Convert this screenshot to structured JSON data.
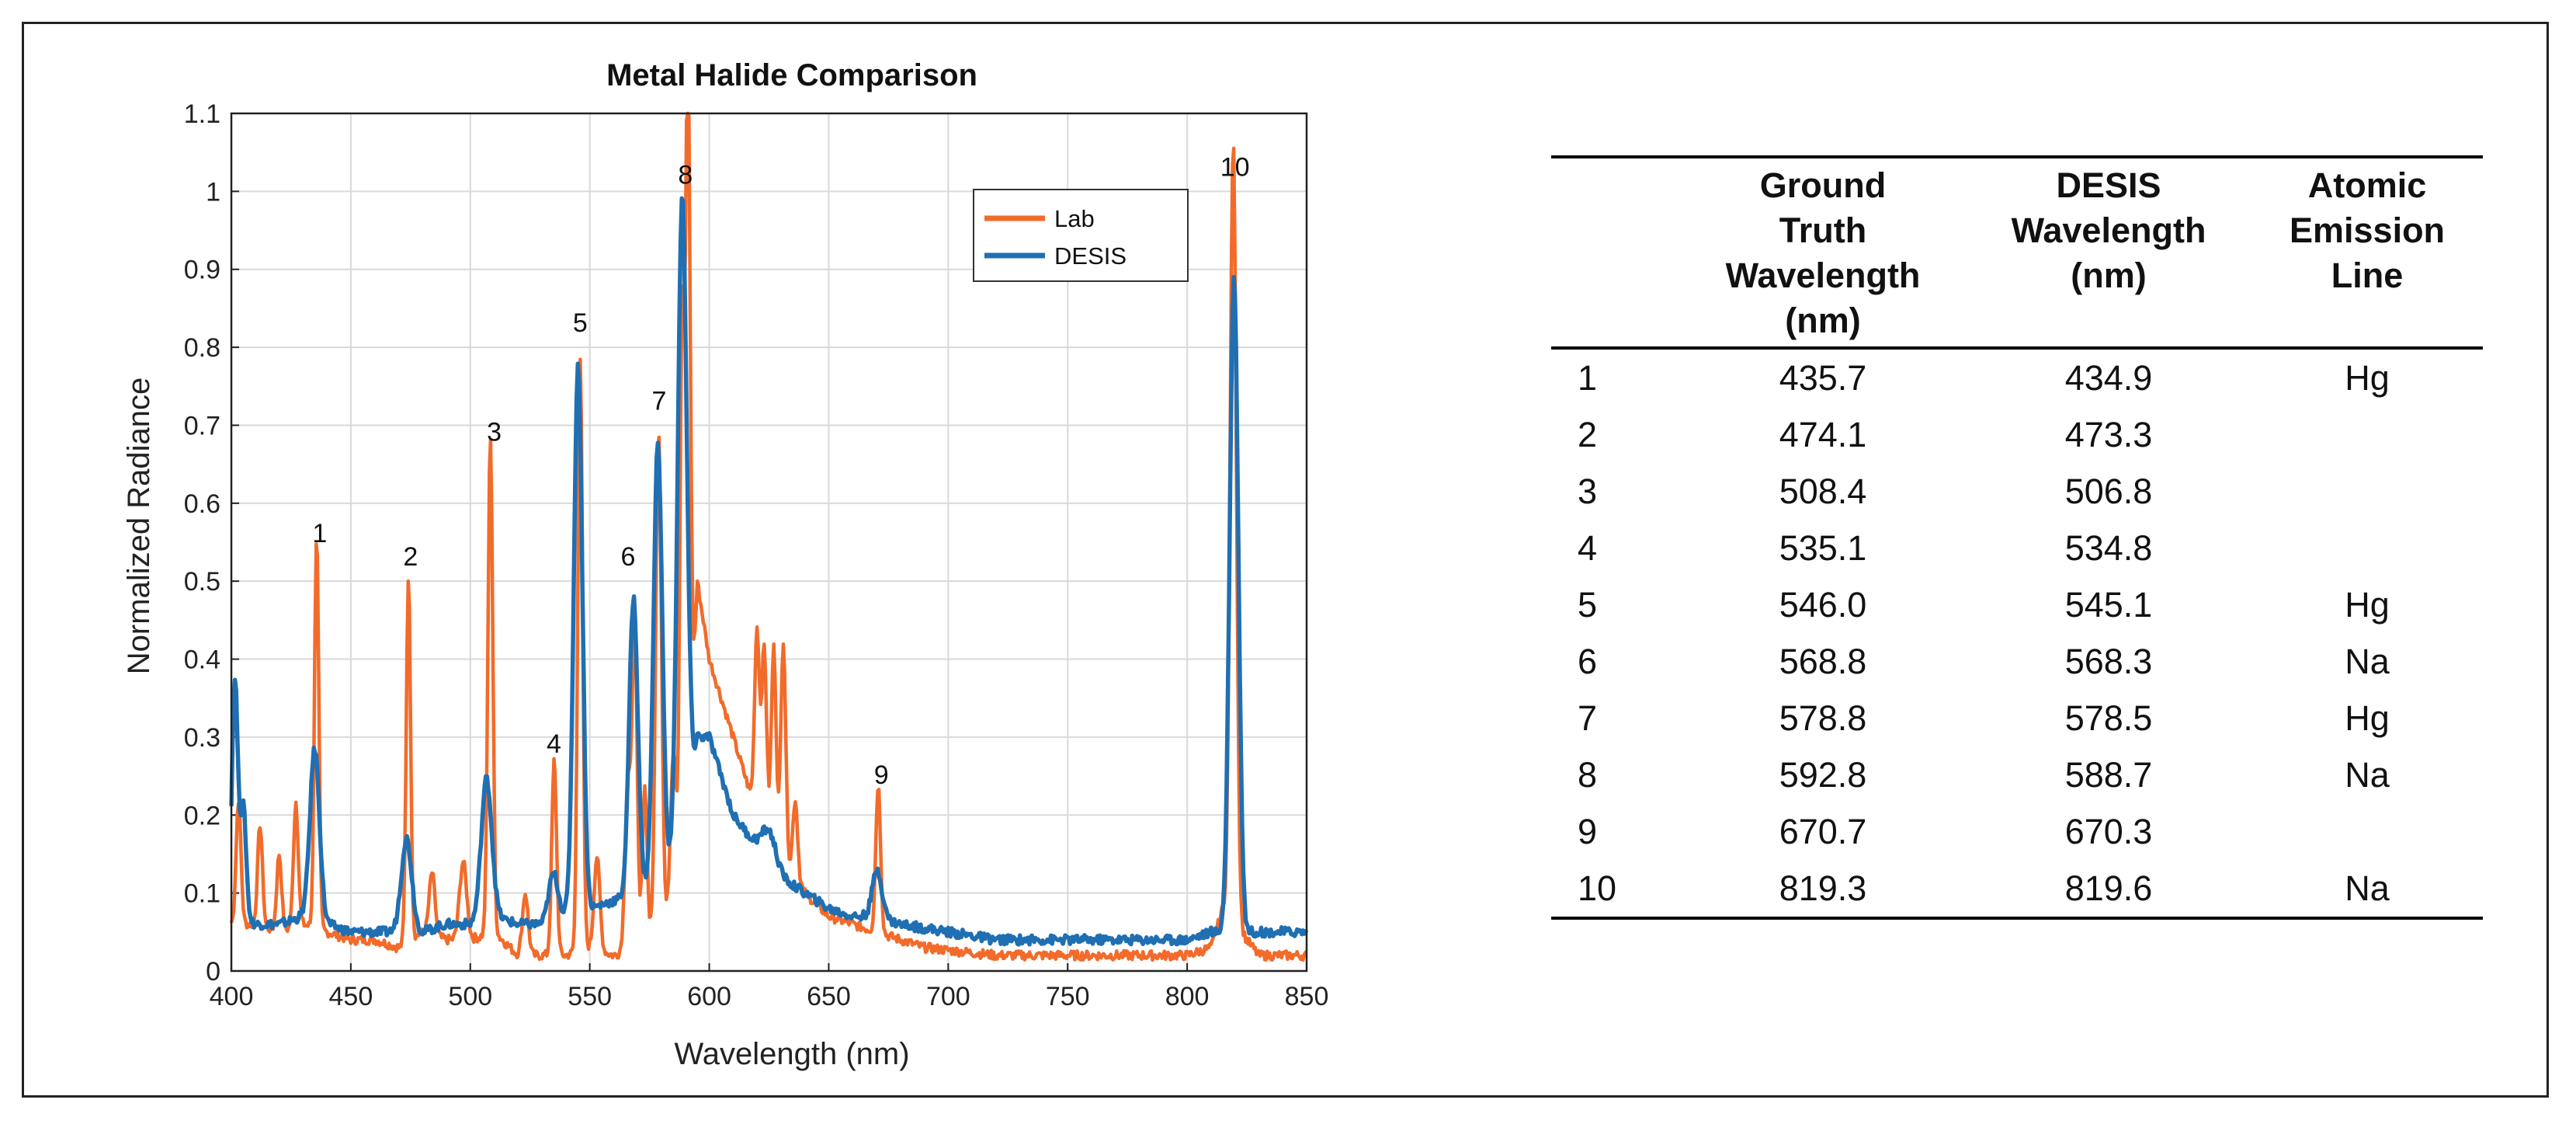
{
  "chart_data": {
    "type": "line",
    "title": "Metal Halide Comparison",
    "xlabel": "Wavelength (nm)",
    "ylabel": "Normalized Radiance",
    "xlim": [
      400,
      850
    ],
    "ylim": [
      0,
      1.1
    ],
    "grid": true,
    "xticks": [
      400,
      450,
      500,
      550,
      600,
      650,
      700,
      750,
      800,
      850
    ],
    "yticks": [
      0,
      0.1,
      0.2,
      0.3,
      0.4,
      0.5,
      0.6,
      0.7,
      0.8,
      0.9,
      1,
      1.1
    ],
    "ytick_labels": [
      "0",
      "0.1",
      "0.2",
      "0.3",
      "0.4",
      "0.5",
      "0.6",
      "0.7",
      "0.8",
      "0.9",
      "1",
      "1.1"
    ],
    "legend_position": "top-right",
    "series": [
      {
        "name": "Lab",
        "color": "#f26b2a",
        "baseline": [
          [
            400,
            0.06
          ],
          [
            410,
            0.06
          ],
          [
            420,
            0.05
          ],
          [
            430,
            0.06
          ],
          [
            440,
            0.05
          ],
          [
            450,
            0.04
          ],
          [
            460,
            0.04
          ],
          [
            470,
            0.03
          ],
          [
            480,
            0.05
          ],
          [
            490,
            0.04
          ],
          [
            500,
            0.04
          ],
          [
            510,
            0.05
          ],
          [
            520,
            0.02
          ],
          [
            530,
            0.02
          ],
          [
            540,
            0.02
          ],
          [
            550,
            0.03
          ],
          [
            560,
            0.02
          ],
          [
            570,
            0.03
          ],
          [
            580,
            0.05
          ],
          [
            590,
            0.12
          ],
          [
            595,
            0.5
          ],
          [
            600,
            0.4
          ],
          [
            610,
            0.3
          ],
          [
            620,
            0.2
          ],
          [
            630,
            0.15
          ],
          [
            640,
            0.1
          ],
          [
            650,
            0.07
          ],
          [
            660,
            0.06
          ],
          [
            670,
            0.05
          ],
          [
            690,
            0.03
          ],
          [
            720,
            0.02
          ],
          [
            760,
            0.02
          ],
          [
            800,
            0.02
          ],
          [
            810,
            0.03
          ],
          [
            815,
            0.08
          ],
          [
            830,
            0.02
          ],
          [
            850,
            0.02
          ]
        ],
        "peaks": [
          {
            "x": 403,
            "y": 0.16,
            "w": 1.0
          },
          {
            "x": 412,
            "y": 0.13,
            "w": 1.0
          },
          {
            "x": 420,
            "y": 0.1,
            "w": 1.0
          },
          {
            "x": 427,
            "y": 0.16,
            "w": 1.0
          },
          {
            "x": 435.7,
            "y": 0.51,
            "w": 0.9
          },
          {
            "x": 474.1,
            "y": 0.47,
            "w": 0.9
          },
          {
            "x": 484,
            "y": 0.08,
            "w": 1.2
          },
          {
            "x": 497,
            "y": 0.1,
            "w": 1.5
          },
          {
            "x": 508.4,
            "y": 0.64,
            "w": 1.0
          },
          {
            "x": 523,
            "y": 0.08,
            "w": 1.2
          },
          {
            "x": 535.1,
            "y": 0.25,
            "w": 1.0
          },
          {
            "x": 546,
            "y": 0.76,
            "w": 1.0
          },
          {
            "x": 553,
            "y": 0.12,
            "w": 1.2
          },
          {
            "x": 566,
            "y": 0.22,
            "w": 1.2
          },
          {
            "x": 568.8,
            "y": 0.42,
            "w": 1.0
          },
          {
            "x": 573,
            "y": 0.2,
            "w": 1.0
          },
          {
            "x": 578.8,
            "y": 0.65,
            "w": 1.2
          },
          {
            "x": 585,
            "y": 0.2,
            "w": 1.2
          },
          {
            "x": 588.6,
            "y": 0.7,
            "w": 0.9
          },
          {
            "x": 591,
            "y": 0.97,
            "w": 1.0
          },
          {
            "x": 620,
            "y": 0.24,
            "w": 1.0
          },
          {
            "x": 623,
            "y": 0.23,
            "w": 1.0
          },
          {
            "x": 627,
            "y": 0.25,
            "w": 1.0
          },
          {
            "x": 631,
            "y": 0.28,
            "w": 1.0
          },
          {
            "x": 636,
            "y": 0.1,
            "w": 1.0
          },
          {
            "x": 670.7,
            "y": 0.19,
            "w": 1.0
          },
          {
            "x": 819.3,
            "y": 1.0,
            "w": 1.3
          }
        ]
      },
      {
        "name": "DESIS",
        "color": "#1f6fb2",
        "baseline": [
          [
            400,
            0.08
          ],
          [
            410,
            0.06
          ],
          [
            420,
            0.06
          ],
          [
            430,
            0.07
          ],
          [
            440,
            0.06
          ],
          [
            450,
            0.05
          ],
          [
            460,
            0.05
          ],
          [
            470,
            0.05
          ],
          [
            480,
            0.05
          ],
          [
            490,
            0.06
          ],
          [
            500,
            0.06
          ],
          [
            510,
            0.07
          ],
          [
            520,
            0.06
          ],
          [
            530,
            0.06
          ],
          [
            540,
            0.07
          ],
          [
            550,
            0.08
          ],
          [
            560,
            0.09
          ],
          [
            570,
            0.1
          ],
          [
            580,
            0.12
          ],
          [
            590,
            0.16
          ],
          [
            595,
            0.3
          ],
          [
            600,
            0.3
          ],
          [
            610,
            0.2
          ],
          [
            620,
            0.16
          ],
          [
            630,
            0.12
          ],
          [
            640,
            0.1
          ],
          [
            650,
            0.08
          ],
          [
            660,
            0.07
          ],
          [
            670,
            0.07
          ],
          [
            680,
            0.06
          ],
          [
            700,
            0.05
          ],
          [
            720,
            0.04
          ],
          [
            740,
            0.04
          ],
          [
            760,
            0.04
          ],
          [
            780,
            0.04
          ],
          [
            800,
            0.04
          ],
          [
            810,
            0.05
          ],
          [
            830,
            0.05
          ],
          [
            850,
            0.05
          ]
        ],
        "peaks": [
          {
            "x": 401.5,
            "y": 0.3,
            "w": 1.2
          },
          {
            "x": 405,
            "y": 0.14,
            "w": 1.2
          },
          {
            "x": 434.9,
            "y": 0.22,
            "w": 2.0
          },
          {
            "x": 473.3,
            "y": 0.12,
            "w": 2.2
          },
          {
            "x": 506.8,
            "y": 0.18,
            "w": 2.2
          },
          {
            "x": 534.8,
            "y": 0.06,
            "w": 2.0
          },
          {
            "x": 545.1,
            "y": 0.7,
            "w": 1.8
          },
          {
            "x": 568.3,
            "y": 0.38,
            "w": 1.8
          },
          {
            "x": 578.5,
            "y": 0.56,
            "w": 1.8
          },
          {
            "x": 588.7,
            "y": 0.84,
            "w": 1.9
          },
          {
            "x": 625,
            "y": 0.04,
            "w": 3.0
          },
          {
            "x": 670.3,
            "y": 0.06,
            "w": 2.0
          },
          {
            "x": 819.6,
            "y": 0.84,
            "w": 1.8
          }
        ]
      }
    ],
    "annotations": [
      {
        "label": "1",
        "x": 437,
        "y": 0.55
      },
      {
        "label": "2",
        "x": 475,
        "y": 0.52
      },
      {
        "label": "3",
        "x": 510,
        "y": 0.68
      },
      {
        "label": "4",
        "x": 535,
        "y": 0.28
      },
      {
        "label": "5",
        "x": 546,
        "y": 0.82
      },
      {
        "label": "6",
        "x": 566,
        "y": 0.52
      },
      {
        "label": "7",
        "x": 579,
        "y": 0.72
      },
      {
        "label": "8",
        "x": 590,
        "y": 1.01
      },
      {
        "label": "9",
        "x": 672,
        "y": 0.24
      },
      {
        "label": "10",
        "x": 820,
        "y": 1.02
      }
    ]
  },
  "table": {
    "headers": [
      "",
      [
        "Ground",
        "Truth",
        "Wavelength",
        "(nm)"
      ],
      [
        "DESIS",
        "Wavelength",
        "(nm)"
      ],
      [
        "Atomic",
        "Emission",
        "Line"
      ]
    ],
    "rows": [
      [
        "1",
        "435.7",
        "434.9",
        "Hg"
      ],
      [
        "2",
        "474.1",
        "473.3",
        ""
      ],
      [
        "3",
        "508.4",
        "506.8",
        ""
      ],
      [
        "4",
        "535.1",
        "534.8",
        ""
      ],
      [
        "5",
        "546.0",
        "545.1",
        "Hg"
      ],
      [
        "6",
        "568.8",
        "568.3",
        "Na"
      ],
      [
        "7",
        "578.8",
        "578.5",
        "Hg"
      ],
      [
        "8",
        "592.8",
        "588.7",
        "Na"
      ],
      [
        "9",
        "670.7",
        "670.3",
        ""
      ],
      [
        "10",
        "819.3",
        "819.6",
        "Na"
      ]
    ]
  }
}
